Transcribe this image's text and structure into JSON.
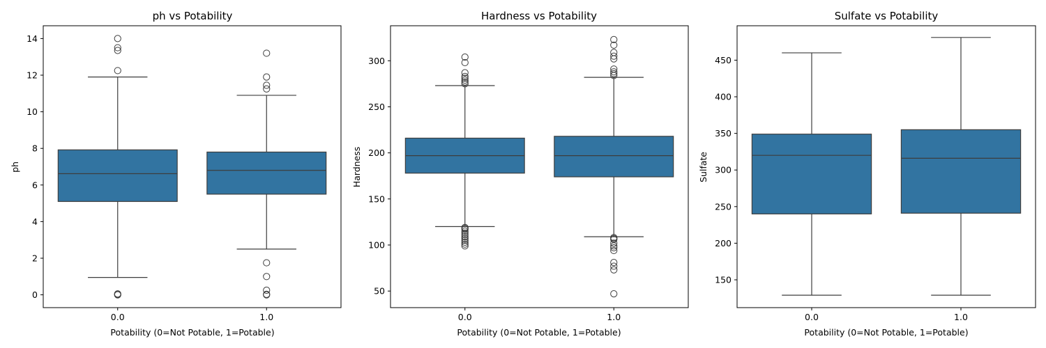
{
  "figure": {
    "box_color": "#3274a1",
    "line_color": "#3d3d3d"
  },
  "chart_data": [
    {
      "type": "boxplot",
      "title": "ph vs Potability",
      "xlabel": "Potability (0=Not Potable, 1=Potable)",
      "ylabel": "ph",
      "ylim": [
        -0.7,
        14.7
      ],
      "yticks": [
        0,
        2,
        4,
        6,
        8,
        10,
        12,
        14
      ],
      "categories": [
        "0.0",
        "1.0"
      ],
      "boxes": [
        {
          "category": "0.0",
          "whisker_low": 0.95,
          "q1": 5.1,
          "median": 6.62,
          "q3": 7.92,
          "whisker_high": 11.9,
          "outliers": [
            0,
            0.02,
            0.05,
            12.25,
            13.35,
            13.5,
            14.0
          ]
        },
        {
          "category": "1.0",
          "whisker_low": 2.5,
          "q1": 5.5,
          "median": 6.8,
          "q3": 7.8,
          "whisker_high": 10.9,
          "outliers": [
            0,
            0.03,
            0.25,
            1.0,
            1.75,
            11.25,
            11.45,
            11.9,
            13.2
          ]
        }
      ]
    },
    {
      "type": "boxplot",
      "title": "Hardness vs Potability",
      "xlabel": "Potability (0=Not Potable, 1=Potable)",
      "ylabel": "Hardness",
      "ylim": [
        32,
        338
      ],
      "yticks": [
        50,
        100,
        150,
        200,
        250,
        300
      ],
      "categories": [
        "0.0",
        "1.0"
      ],
      "boxes": [
        {
          "category": "0.0",
          "whisker_low": 120,
          "q1": 178,
          "median": 197,
          "q3": 216,
          "whisker_high": 273,
          "outliers": [
            99,
            101,
            103,
            105,
            107,
            109,
            111,
            113,
            115,
            117,
            118,
            119,
            275,
            277,
            279,
            281,
            283,
            287,
            298,
            304
          ]
        },
        {
          "category": "1.0",
          "whisker_low": 109,
          "q1": 174,
          "median": 197,
          "q3": 218,
          "whisker_high": 282,
          "outliers": [
            47,
            73,
            77,
            81,
            94,
            97,
            99,
            102,
            106,
            107,
            108,
            284,
            286,
            288,
            291,
            302,
            305,
            309,
            317,
            323
          ]
        }
      ]
    },
    {
      "type": "boxplot",
      "title": "Sulfate vs Potability",
      "xlabel": "Potability (0=Not Potable, 1=Potable)",
      "ylabel": "Sulfate",
      "ylim": [
        112,
        497
      ],
      "yticks": [
        150,
        200,
        250,
        300,
        350,
        400,
        450
      ],
      "categories": [
        "0.0",
        "1.0"
      ],
      "boxes": [
        {
          "category": "0.0",
          "whisker_low": 129,
          "q1": 240,
          "median": 320,
          "q3": 349,
          "whisker_high": 460,
          "outliers": []
        },
        {
          "category": "1.0",
          "whisker_low": 129,
          "q1": 241,
          "median": 316,
          "q3": 355,
          "whisker_high": 481,
          "outliers": []
        }
      ]
    }
  ]
}
